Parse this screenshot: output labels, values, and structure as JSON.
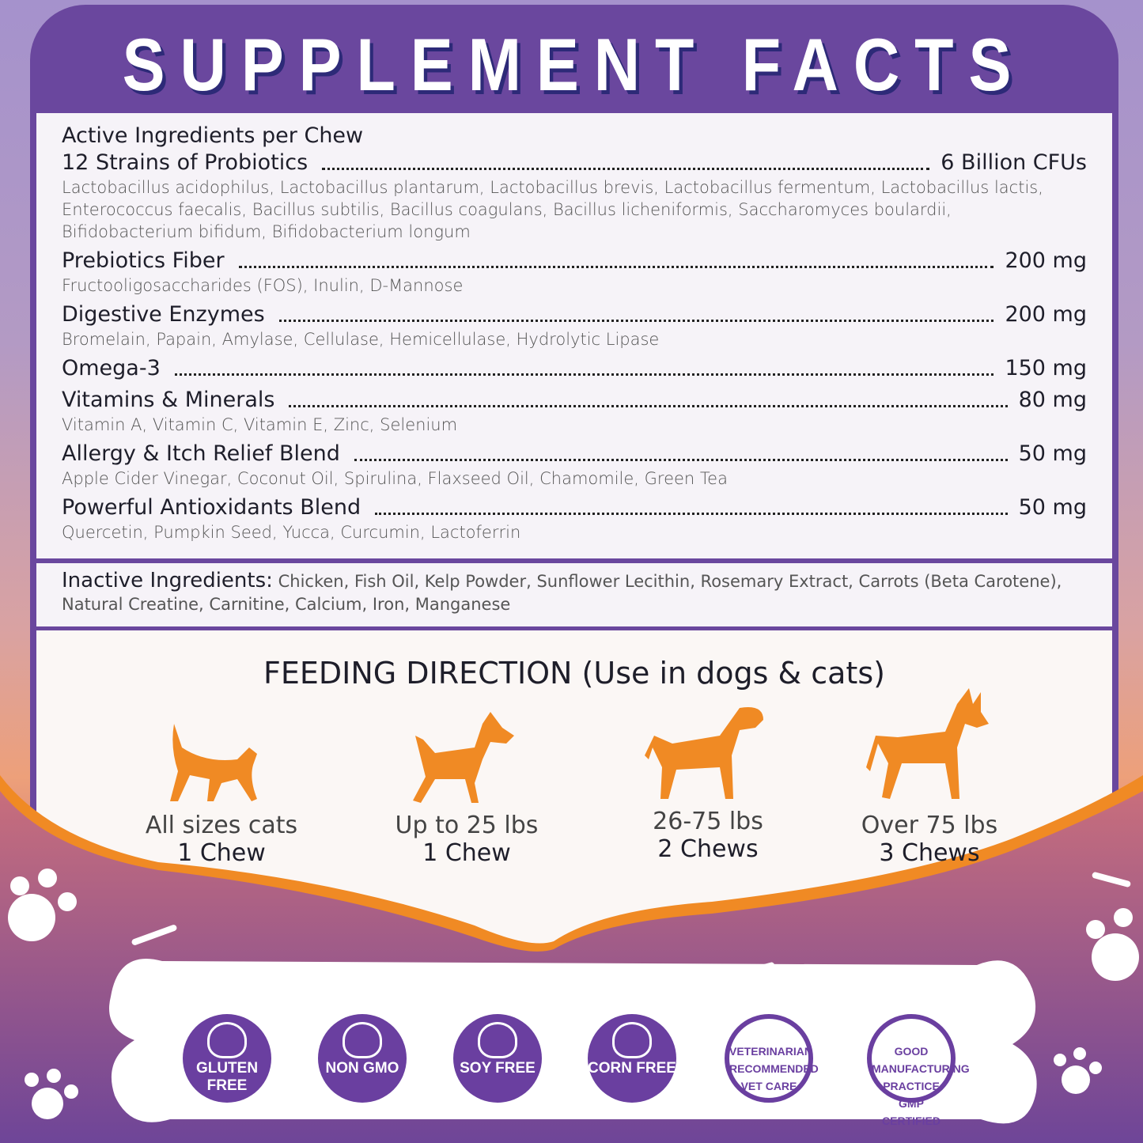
{
  "title": "SUPPLEMENT FACTS",
  "active": {
    "heading": "Active Ingredients per Chew",
    "items": [
      {
        "name": "12 Strains of Probiotics",
        "amount": "6 Billion CFUs",
        "detail": "Lactobacillus acidophilus, Lactobacillus plantarum, Lactobacillus brevis, Lactobacillus fermentum, Lactobacillus lactis, Enterococcus faecalis, Bacillus subtilis, Bacillus coagulans, Bacillus licheniformis, Saccharomyces boulardii, Bifidobacterium bifidum, Bifidobacterium longum"
      },
      {
        "name": "Prebiotics Fiber",
        "amount": "200 mg",
        "detail": "Fructooligosaccharides (FOS), Inulin, D-Mannose"
      },
      {
        "name": "Digestive Enzymes",
        "amount": "200 mg",
        "detail": "Bromelain, Papain, Amylase, Cellulase, Hemicellulase, Hydrolytic Lipase"
      },
      {
        "name": "Omega-3",
        "amount": "150 mg",
        "detail": ""
      },
      {
        "name": "Vitamins & Minerals",
        "amount": "80 mg",
        "detail": "Vitamin A, Vitamin C, Vitamin E, Zinc, Selenium"
      },
      {
        "name": "Allergy & Itch Relief Blend",
        "amount": "50 mg",
        "detail": "Apple Cider Vinegar, Coconut Oil, Spirulina, Flaxseed Oil, Chamomile, Green Tea"
      },
      {
        "name": "Powerful Antioxidants Blend",
        "amount": "50 mg",
        "detail": "Quercetin, Pumpkin Seed, Yucca, Curcumin, Lactoferrin"
      }
    ]
  },
  "inactive": {
    "label": "Inactive Ingredients:",
    "text": "Chicken, Fish Oil, Kelp Powder, Sunflower Lecithin, Rosemary Extract, Carrots (Beta Carotene), Natural Creatine, Carnitine, Calcium, Iron, Manganese"
  },
  "feeding": {
    "title": "FEEDING DIRECTION (Use in dogs & cats)",
    "pets": [
      {
        "icon": "cat-icon",
        "size": "All sizes cats",
        "dose": "1 Chew"
      },
      {
        "icon": "small-dog-icon",
        "size": "Up to 25 lbs",
        "dose": "1 Chew"
      },
      {
        "icon": "medium-dog-icon",
        "size": "26-75 lbs",
        "dose": "2 Chews"
      },
      {
        "icon": "large-dog-icon",
        "size": "Over 75 lbs",
        "dose": "3 Chews"
      }
    ]
  },
  "badges": [
    {
      "icon": "wheat-icon",
      "label": "GLUTEN FREE"
    },
    {
      "icon": "dna-icon",
      "label": "NON GMO"
    },
    {
      "icon": "soybean-icon",
      "label": "SOY FREE"
    },
    {
      "icon": "corn-icon",
      "label": "CORN FREE"
    },
    {
      "icon": "vet-care-seal",
      "label": "VETERINARIAN RECOMMENDED VET CARE"
    },
    {
      "icon": "gmp-seal",
      "label": "GOOD MANUFACTURING PRACTICE GMP CERTIFIED"
    }
  ],
  "colors": {
    "purple": "#6a479e",
    "orange": "#f08a24",
    "panel": "#f6f3f8"
  }
}
